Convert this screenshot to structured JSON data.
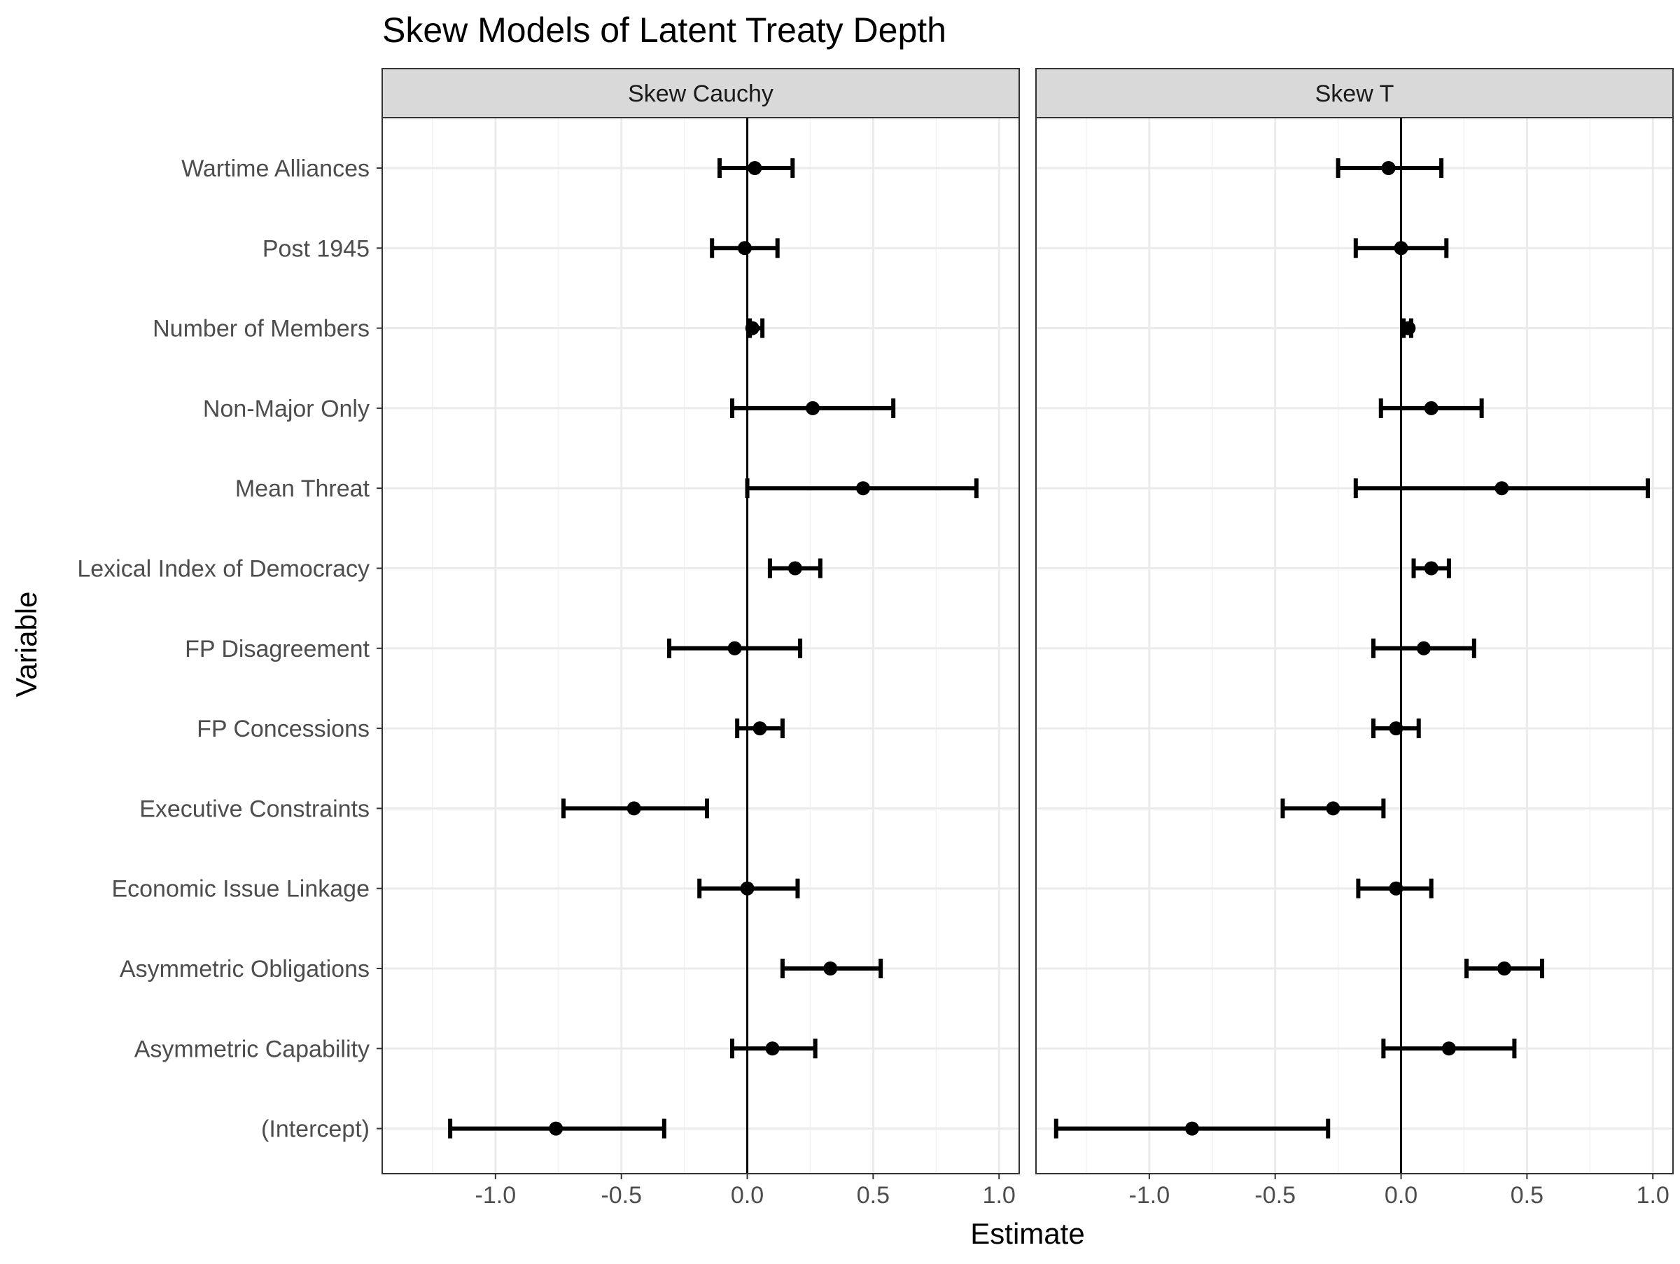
{
  "chart_data": {
    "type": "errorbar",
    "title": "Skew Models of Latent Treaty Depth",
    "xlabel": "Estimate",
    "ylabel": "Variable",
    "xlim": [
      -1.45,
      1.08
    ],
    "x_ticks": [
      -1.0,
      -0.5,
      0.0,
      0.5,
      1.0
    ],
    "x_tick_labels": [
      "-1.0",
      "-0.5",
      "0.0",
      "0.5",
      "1.0"
    ],
    "reference_line": 0,
    "grid": true,
    "categories": [
      "Wartime Alliances",
      "Post 1945",
      "Number of Members",
      "Non-Major Only",
      "Mean Threat",
      "Lexical Index of Democracy",
      "FP Disagreement",
      "FP Concessions",
      "Executive Constraints",
      "Economic Issue Linkage",
      "Asymmetric Obligations",
      "Asymmetric Capability",
      "(Intercept)"
    ],
    "panels": [
      {
        "name": "Skew Cauchy",
        "estimates": [
          0.03,
          -0.01,
          0.02,
          0.26,
          0.46,
          0.19,
          -0.05,
          0.05,
          -0.45,
          0.0,
          0.33,
          0.1,
          -0.76
        ],
        "lower": [
          -0.11,
          -0.14,
          0.01,
          -0.06,
          0.0,
          0.09,
          -0.31,
          -0.04,
          -0.73,
          -0.19,
          0.14,
          -0.06,
          -1.18
        ],
        "upper": [
          0.18,
          0.12,
          0.06,
          0.58,
          0.91,
          0.29,
          0.21,
          0.14,
          -0.16,
          0.2,
          0.53,
          0.27,
          -0.33
        ]
      },
      {
        "name": "Skew T",
        "estimates": [
          -0.05,
          0.0,
          0.03,
          0.12,
          0.4,
          0.12,
          0.09,
          -0.02,
          -0.27,
          -0.02,
          0.41,
          0.19,
          -0.83
        ],
        "lower": [
          -0.25,
          -0.18,
          0.01,
          -0.08,
          -0.18,
          0.05,
          -0.11,
          -0.11,
          -0.47,
          -0.17,
          0.26,
          -0.07,
          -1.37
        ],
        "upper": [
          0.16,
          0.18,
          0.04,
          0.32,
          0.98,
          0.19,
          0.29,
          0.07,
          -0.07,
          0.12,
          0.56,
          0.45,
          -0.29
        ]
      }
    ]
  }
}
